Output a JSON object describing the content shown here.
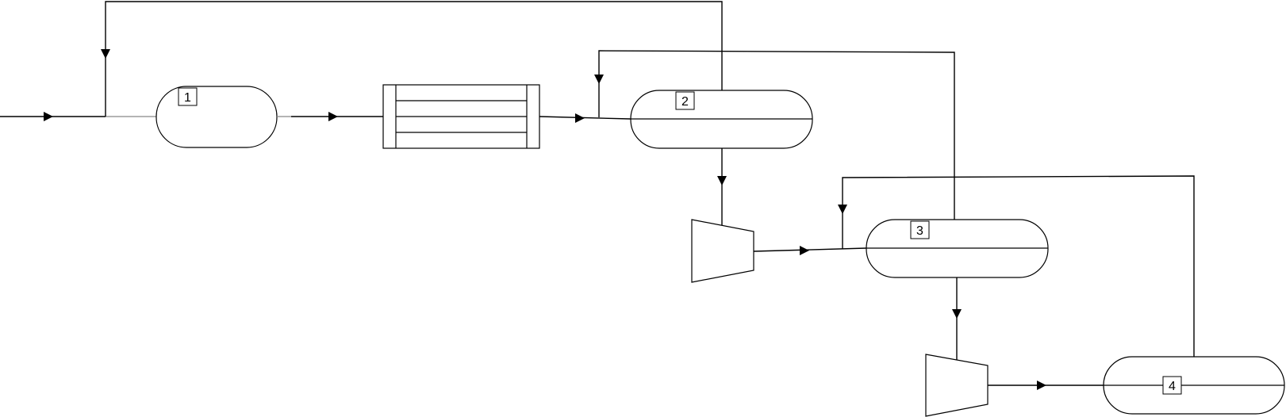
{
  "diagram": {
    "labels": {
      "vessel_1": "1",
      "vessel_2": "2",
      "vessel_3": "3",
      "vessel_4": "4"
    },
    "colors": {
      "line": "#000000",
      "background": "#ffffff",
      "inlet_line": "#888888"
    }
  }
}
